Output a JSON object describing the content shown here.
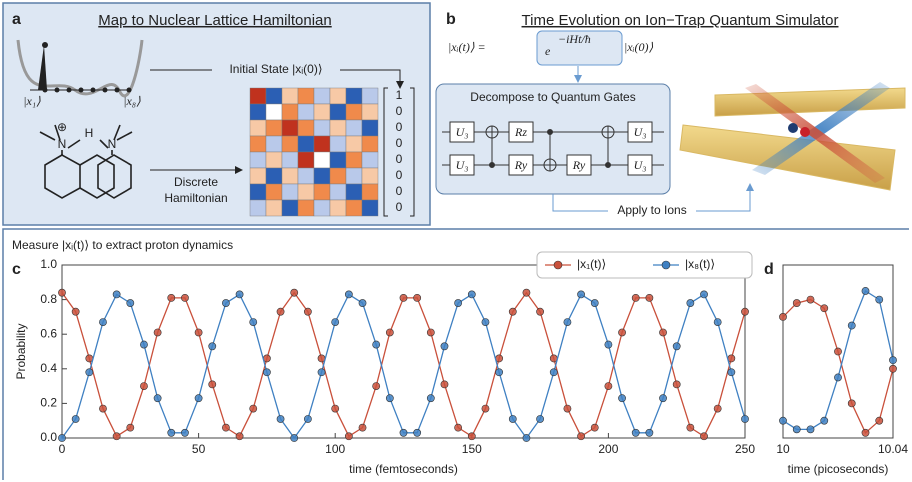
{
  "panel_labels": [
    "a",
    "b",
    "c",
    "d"
  ],
  "map_panel": {
    "title": "Map to Nuclear Lattice Hamiltonian",
    "initial_state": "Initial State |xᵢ(0)⟩",
    "discrete": [
      "Discrete",
      "Hamiltonian"
    ],
    "site_first": "|x₁⟩",
    "site_last": "|x₈⟩",
    "atoms": [
      "⊕",
      "N",
      "H",
      "N"
    ],
    "initial_vector": [
      1,
      0,
      0,
      0,
      0,
      0,
      0,
      0
    ]
  },
  "evolution_panel": {
    "title": "Time Evolution on Ion−Trap Quantum Simulator",
    "equation": {
      "lhs": "|xᵢ(t)⟩ =",
      "base": "e",
      "exponent": "−iHt/ħ",
      "rhs": "|xᵢ(0)⟩"
    },
    "circuit_title": "Decompose to Quantum Gates",
    "gates_top": [
      "U₃",
      "Rz",
      "U₃"
    ],
    "gates_bottom": [
      "U₃",
      "Ry",
      "Ry",
      "U₃"
    ],
    "apply": "Apply to Ions"
  },
  "measure_heading": "Measure |xᵢ(t)⟩ to extract proton dynamics",
  "chart_data": [
    {
      "type": "line",
      "markers": true,
      "ylabel": "Probability",
      "xlabel": "time (femtoseconds)",
      "xlim": [
        0,
        250
      ],
      "xticks": [
        0,
        50,
        100,
        150,
        200,
        250
      ],
      "ylim": [
        0,
        1
      ],
      "yticks": [
        {
          "value": 0,
          "label": "0.0"
        },
        {
          "value": 0.2,
          "label": "0.2"
        },
        {
          "value": 0.4,
          "label": "0.4"
        },
        {
          "value": 0.6,
          "label": "0.6"
        },
        {
          "value": 0.8,
          "label": "0.8"
        },
        {
          "value": 1,
          "label": "1.0"
        }
      ],
      "legend": "top-right",
      "x": [
        0,
        5,
        10,
        15,
        20,
        25,
        30,
        35,
        40,
        45,
        50,
        55,
        60,
        65,
        70,
        75,
        80,
        85,
        90,
        95,
        100,
        105,
        110,
        115,
        120,
        125,
        130,
        135,
        140,
        145,
        150,
        155,
        160,
        165,
        170,
        175,
        180,
        185,
        190,
        195,
        200,
        205,
        210,
        215,
        220,
        225,
        230,
        235,
        240,
        245,
        250
      ],
      "series": [
        {
          "name": "|x₁(t)⟩",
          "color": "#c9503b",
          "values": [
            0.84,
            0.73,
            0.46,
            0.17,
            0.01,
            0.06,
            0.3,
            0.61,
            0.81,
            0.81,
            0.61,
            0.31,
            0.06,
            0.01,
            0.17,
            0.46,
            0.73,
            0.84,
            0.73,
            0.46,
            0.17,
            0.01,
            0.06,
            0.3,
            0.61,
            0.81,
            0.81,
            0.61,
            0.31,
            0.06,
            0.01,
            0.17,
            0.46,
            0.73,
            0.84,
            0.73,
            0.46,
            0.17,
            0.01,
            0.06,
            0.3,
            0.61,
            0.81,
            0.81,
            0.61,
            0.31,
            0.06,
            0.01,
            0.17,
            0.46,
            0.73
          ]
        },
        {
          "name": "|x₈(t)⟩",
          "color": "#3f80c2",
          "values": [
            0,
            0.11,
            0.38,
            0.67,
            0.83,
            0.78,
            0.54,
            0.23,
            0.03,
            0.03,
            0.23,
            0.53,
            0.78,
            0.83,
            0.67,
            0.38,
            0.11,
            0,
            0.11,
            0.38,
            0.67,
            0.83,
            0.78,
            0.54,
            0.23,
            0.03,
            0.03,
            0.23,
            0.53,
            0.78,
            0.83,
            0.67,
            0.38,
            0.11,
            0,
            0.11,
            0.38,
            0.67,
            0.83,
            0.78,
            0.54,
            0.23,
            0.03,
            0.03,
            0.23,
            0.53,
            0.78,
            0.83,
            0.67,
            0.38,
            0.11
          ]
        }
      ]
    },
    {
      "type": "line",
      "markers": true,
      "xlabel": "time (picoseconds)",
      "xlim": [
        10,
        10.04
      ],
      "xticks": [
        10,
        10.04
      ],
      "ylim": [
        0,
        1
      ],
      "x": [
        10,
        10.005,
        10.01,
        10.015,
        10.02,
        10.025,
        10.03,
        10.035,
        10.04
      ],
      "series": [
        {
          "color": "#c9503b",
          "values": [
            0.7,
            0.78,
            0.8,
            0.75,
            0.5,
            0.2,
            0.03,
            0.1,
            0.4
          ]
        },
        {
          "color": "#3f80c2",
          "values": [
            0.1,
            0.05,
            0.05,
            0.1,
            0.35,
            0.65,
            0.85,
            0.8,
            0.45
          ]
        }
      ]
    }
  ]
}
